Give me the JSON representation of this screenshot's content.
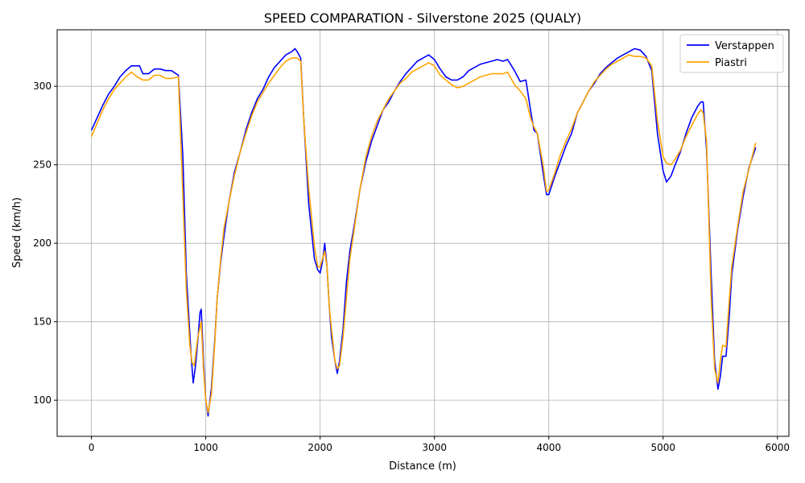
{
  "chart_data": {
    "type": "line",
    "title": "SPEED COMPARATION - Silverstone 2025 (QUALY)",
    "xlabel": "Distance (m)",
    "ylabel": "Speed (km/h)",
    "xlim": [
      -300,
      6100
    ],
    "ylim": [
      77,
      336
    ],
    "xticks": [
      0,
      1000,
      2000,
      3000,
      4000,
      5000,
      6000
    ],
    "yticks": [
      100,
      150,
      200,
      250,
      300
    ],
    "grid": true,
    "legend_position": "top-right",
    "series": [
      {
        "name": "Verstappen",
        "color": "#0000ff",
        "points": [
          [
            0,
            272
          ],
          [
            100,
            288
          ],
          [
            150,
            295
          ],
          [
            200,
            300
          ],
          [
            250,
            306
          ],
          [
            300,
            310
          ],
          [
            350,
            313
          ],
          [
            420,
            313
          ],
          [
            450,
            308
          ],
          [
            500,
            308
          ],
          [
            550,
            311
          ],
          [
            600,
            311
          ],
          [
            650,
            310
          ],
          [
            700,
            310
          ],
          [
            760,
            307
          ],
          [
            800,
            255
          ],
          [
            830,
            180
          ],
          [
            870,
            130
          ],
          [
            890,
            111
          ],
          [
            910,
            122
          ],
          [
            930,
            138
          ],
          [
            950,
            156
          ],
          [
            960,
            158
          ],
          [
            980,
            125
          ],
          [
            1000,
            100
          ],
          [
            1020,
            90
          ],
          [
            1050,
            108
          ],
          [
            1080,
            140
          ],
          [
            1100,
            165
          ],
          [
            1130,
            188
          ],
          [
            1160,
            205
          ],
          [
            1200,
            225
          ],
          [
            1250,
            245
          ],
          [
            1300,
            258
          ],
          [
            1350,
            272
          ],
          [
            1400,
            283
          ],
          [
            1450,
            292
          ],
          [
            1500,
            298
          ],
          [
            1550,
            306
          ],
          [
            1600,
            312
          ],
          [
            1650,
            316
          ],
          [
            1700,
            320
          ],
          [
            1750,
            322
          ],
          [
            1780,
            324
          ],
          [
            1800,
            322
          ],
          [
            1830,
            318
          ],
          [
            1860,
            275
          ],
          [
            1900,
            225
          ],
          [
            1950,
            190
          ],
          [
            1980,
            183
          ],
          [
            2000,
            181
          ],
          [
            2020,
            188
          ],
          [
            2040,
            200
          ],
          [
            2060,
            185
          ],
          [
            2080,
            160
          ],
          [
            2100,
            140
          ],
          [
            2130,
            125
          ],
          [
            2150,
            117
          ],
          [
            2170,
            125
          ],
          [
            2200,
            145
          ],
          [
            2230,
            175
          ],
          [
            2260,
            195
          ],
          [
            2300,
            212
          ],
          [
            2350,
            235
          ],
          [
            2400,
            252
          ],
          [
            2450,
            265
          ],
          [
            2500,
            275
          ],
          [
            2550,
            285
          ],
          [
            2600,
            290
          ],
          [
            2650,
            297
          ],
          [
            2700,
            303
          ],
          [
            2750,
            308
          ],
          [
            2800,
            312
          ],
          [
            2850,
            316
          ],
          [
            2900,
            318
          ],
          [
            2950,
            320
          ],
          [
            3000,
            317
          ],
          [
            3050,
            311
          ],
          [
            3100,
            306
          ],
          [
            3150,
            304
          ],
          [
            3200,
            304
          ],
          [
            3250,
            306
          ],
          [
            3300,
            310
          ],
          [
            3350,
            312
          ],
          [
            3400,
            314
          ],
          [
            3450,
            315
          ],
          [
            3500,
            316
          ],
          [
            3550,
            317
          ],
          [
            3600,
            316
          ],
          [
            3640,
            317
          ],
          [
            3700,
            310
          ],
          [
            3750,
            303
          ],
          [
            3800,
            304
          ],
          [
            3840,
            285
          ],
          [
            3870,
            272
          ],
          [
            3900,
            270
          ],
          [
            3950,
            245
          ],
          [
            3980,
            231
          ],
          [
            4000,
            231
          ],
          [
            4050,
            242
          ],
          [
            4100,
            252
          ],
          [
            4150,
            262
          ],
          [
            4200,
            270
          ],
          [
            4250,
            283
          ],
          [
            4300,
            290
          ],
          [
            4350,
            297
          ],
          [
            4400,
            302
          ],
          [
            4450,
            308
          ],
          [
            4500,
            312
          ],
          [
            4550,
            315
          ],
          [
            4600,
            318
          ],
          [
            4650,
            320
          ],
          [
            4700,
            322
          ],
          [
            4750,
            324
          ],
          [
            4800,
            323
          ],
          [
            4850,
            319
          ],
          [
            4900,
            310
          ],
          [
            4950,
            270
          ],
          [
            5000,
            246
          ],
          [
            5030,
            239
          ],
          [
            5070,
            243
          ],
          [
            5100,
            249
          ],
          [
            5150,
            258
          ],
          [
            5200,
            270
          ],
          [
            5250,
            280
          ],
          [
            5300,
            287
          ],
          [
            5330,
            290
          ],
          [
            5350,
            290
          ],
          [
            5380,
            260
          ],
          [
            5420,
            180
          ],
          [
            5450,
            125
          ],
          [
            5480,
            107
          ],
          [
            5500,
            115
          ],
          [
            5520,
            128
          ],
          [
            5550,
            128
          ],
          [
            5580,
            155
          ],
          [
            5600,
            180
          ],
          [
            5650,
            208
          ],
          [
            5700,
            230
          ],
          [
            5750,
            248
          ],
          [
            5810,
            261
          ]
        ]
      },
      {
        "name": "Piastri",
        "color": "#ffa500",
        "points": [
          [
            0,
            268
          ],
          [
            100,
            285
          ],
          [
            150,
            292
          ],
          [
            200,
            298
          ],
          [
            250,
            302
          ],
          [
            300,
            306
          ],
          [
            350,
            309
          ],
          [
            400,
            306
          ],
          [
            450,
            304
          ],
          [
            500,
            304
          ],
          [
            550,
            307
          ],
          [
            600,
            307
          ],
          [
            650,
            305
          ],
          [
            700,
            305
          ],
          [
            760,
            306
          ],
          [
            800,
            230
          ],
          [
            830,
            170
          ],
          [
            860,
            135
          ],
          [
            880,
            124
          ],
          [
            900,
            122
          ],
          [
            930,
            140
          ],
          [
            960,
            150
          ],
          [
            980,
            120
          ],
          [
            1000,
            100
          ],
          [
            1020,
            92
          ],
          [
            1050,
            104
          ],
          [
            1080,
            138
          ],
          [
            1100,
            165
          ],
          [
            1130,
            190
          ],
          [
            1160,
            210
          ],
          [
            1200,
            225
          ],
          [
            1250,
            243
          ],
          [
            1300,
            258
          ],
          [
            1350,
            270
          ],
          [
            1400,
            281
          ],
          [
            1450,
            290
          ],
          [
            1500,
            296
          ],
          [
            1550,
            302
          ],
          [
            1600,
            307
          ],
          [
            1650,
            312
          ],
          [
            1700,
            316
          ],
          [
            1750,
            318
          ],
          [
            1800,
            318
          ],
          [
            1830,
            316
          ],
          [
            1860,
            275
          ],
          [
            1900,
            235
          ],
          [
            1950,
            198
          ],
          [
            1980,
            185
          ],
          [
            2000,
            185
          ],
          [
            2020,
            190
          ],
          [
            2040,
            195
          ],
          [
            2060,
            185
          ],
          [
            2080,
            160
          ],
          [
            2100,
            145
          ],
          [
            2130,
            125
          ],
          [
            2150,
            120
          ],
          [
            2170,
            122
          ],
          [
            2200,
            140
          ],
          [
            2230,
            165
          ],
          [
            2260,
            190
          ],
          [
            2300,
            210
          ],
          [
            2350,
            235
          ],
          [
            2400,
            255
          ],
          [
            2450,
            268
          ],
          [
            2500,
            278
          ],
          [
            2550,
            285
          ],
          [
            2600,
            292
          ],
          [
            2650,
            297
          ],
          [
            2700,
            302
          ],
          [
            2750,
            305
          ],
          [
            2800,
            309
          ],
          [
            2850,
            311
          ],
          [
            2900,
            313
          ],
          [
            2950,
            315
          ],
          [
            3000,
            313
          ],
          [
            3050,
            307
          ],
          [
            3100,
            304
          ],
          [
            3150,
            301
          ],
          [
            3200,
            299
          ],
          [
            3250,
            300
          ],
          [
            3300,
            302
          ],
          [
            3350,
            304
          ],
          [
            3400,
            306
          ],
          [
            3450,
            307
          ],
          [
            3500,
            308
          ],
          [
            3550,
            308
          ],
          [
            3600,
            308
          ],
          [
            3640,
            309
          ],
          [
            3700,
            301
          ],
          [
            3750,
            297
          ],
          [
            3800,
            292
          ],
          [
            3840,
            280
          ],
          [
            3870,
            274
          ],
          [
            3900,
            270
          ],
          [
            3950,
            250
          ],
          [
            3980,
            233
          ],
          [
            4000,
            234
          ],
          [
            4050,
            244
          ],
          [
            4100,
            256
          ],
          [
            4150,
            265
          ],
          [
            4200,
            273
          ],
          [
            4250,
            283
          ],
          [
            4300,
            290
          ],
          [
            4350,
            297
          ],
          [
            4400,
            303
          ],
          [
            4450,
            307
          ],
          [
            4500,
            311
          ],
          [
            4550,
            314
          ],
          [
            4600,
            316
          ],
          [
            4650,
            318
          ],
          [
            4700,
            320
          ],
          [
            4750,
            319
          ],
          [
            4800,
            319
          ],
          [
            4850,
            318
          ],
          [
            4900,
            313
          ],
          [
            4950,
            278
          ],
          [
            5000,
            255
          ],
          [
            5030,
            251
          ],
          [
            5070,
            250
          ],
          [
            5100,
            253
          ],
          [
            5150,
            259
          ],
          [
            5200,
            268
          ],
          [
            5250,
            275
          ],
          [
            5300,
            282
          ],
          [
            5330,
            285
          ],
          [
            5350,
            283
          ],
          [
            5380,
            265
          ],
          [
            5420,
            165
          ],
          [
            5450,
            120
          ],
          [
            5480,
            111
          ],
          [
            5500,
            125
          ],
          [
            5520,
            135
          ],
          [
            5550,
            134
          ],
          [
            5580,
            165
          ],
          [
            5600,
            185
          ],
          [
            5650,
            210
          ],
          [
            5700,
            233
          ],
          [
            5750,
            247
          ],
          [
            5810,
            264
          ]
        ]
      }
    ]
  }
}
